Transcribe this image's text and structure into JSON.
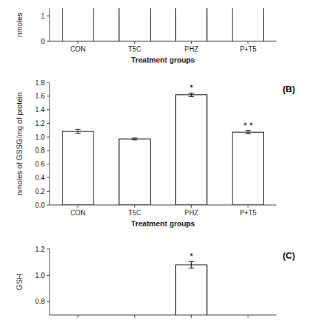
{
  "chart_data": [
    {
      "type": "bar",
      "categories": [
        "CON",
        "T5C",
        "PHZ",
        "P+T5"
      ],
      "xlabel": "Treatment groups",
      "ylabel": "nmoles",
      "ylim": [
        0,
        1.3
      ],
      "yticks": [
        0,
        1
      ]
    },
    {
      "type": "bar",
      "title": "(B)",
      "categories": [
        "CON",
        "T5C",
        "PHZ",
        "P+T5"
      ],
      "values": [
        1.08,
        0.97,
        1.62,
        1.07
      ],
      "errors": [
        0.03,
        0.015,
        0.025,
        0.025
      ],
      "color": "white",
      "xlabel": "Treatment groups",
      "ylabel": "nmoles of GSSG/mg of protein",
      "ylim": [
        0.0,
        1.8
      ],
      "yticks": [
        {
          "value": 0.0,
          "label": "0.0"
        },
        0.2,
        0.4,
        0.6,
        0.8,
        {
          "value": 1.0,
          "label": "1.0"
        },
        1.2,
        1.4,
        1.6,
        1.8
      ],
      "annotations": [
        {
          "text": "*",
          "index": 2
        },
        {
          "text": "* *",
          "index": 3
        }
      ]
    },
    {
      "type": "bar",
      "title": "(C)",
      "categories": [
        null,
        null,
        null,
        null
      ],
      "values": [
        null,
        null,
        1.08,
        null
      ],
      "errors": [
        null,
        null,
        0.025,
        null
      ],
      "color": "white",
      "ylabel": "GSH",
      "ylim": [
        0.7,
        1.2
      ],
      "yticks": [
        0.8,
        {
          "value": 1.0,
          "label": "1.0"
        },
        1.2
      ],
      "annotations": [
        {
          "text": "*",
          "index": 2
        }
      ]
    }
  ]
}
